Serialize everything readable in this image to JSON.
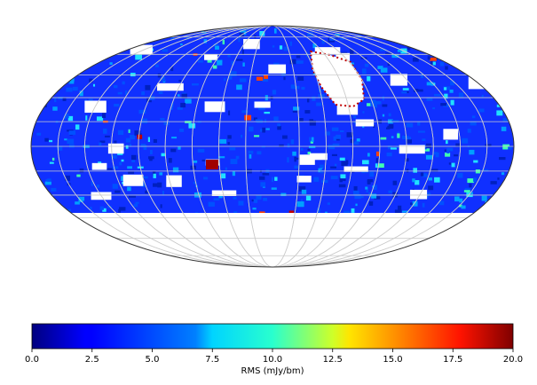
{
  "chart_data": {
    "type": "map",
    "colorbar_label": "RMS (mJy/bm)",
    "xlim": [
      0,
      20
    ],
    "xticks": [
      {
        "value": 0,
        "label": "0.0"
      },
      {
        "value": 2.5,
        "label": "2.5"
      },
      {
        "value": 5,
        "label": "5.0"
      },
      {
        "value": 7.5,
        "label": "7.5"
      },
      {
        "value": 10,
        "label": "10.0"
      },
      {
        "value": 12.5,
        "label": "12.5"
      },
      {
        "value": 15,
        "label": "15.0"
      },
      {
        "value": 17.5,
        "label": "17.5"
      },
      {
        "value": 20,
        "label": "20.0"
      }
    ]
  }
}
